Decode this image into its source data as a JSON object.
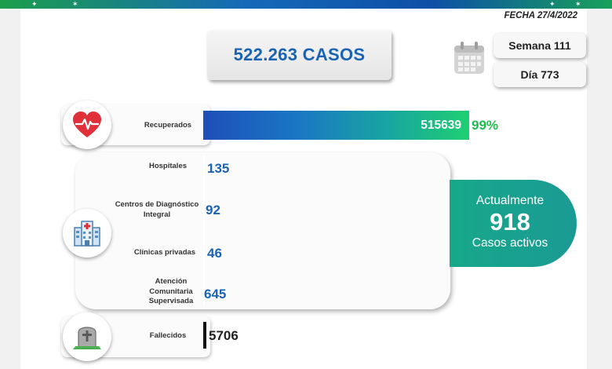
{
  "header": {
    "fecha": "FECHA 27/4/2022"
  },
  "summary": {
    "casos": "522.263 CASOS",
    "semana": "Semana 111",
    "dia": "Día 773"
  },
  "recuperados": {
    "label": "Recuperados",
    "value": "515639",
    "percent": "99%"
  },
  "facilities": [
    {
      "label": "Hospitales",
      "value": "135"
    },
    {
      "label": "Centros de Diagnóstico Integral",
      "value": "92"
    },
    {
      "label": "Clínicas privadas",
      "value": "46"
    },
    {
      "label": "Atención Comunitaria Supervisada",
      "value": "645"
    }
  ],
  "activos": {
    "line1": "Actualmente",
    "value": "918",
    "line2": "Casos activos"
  },
  "fallecidos": {
    "label": "Fallecidos",
    "value": "5706"
  },
  "icons": [
    "heart-pulse-icon",
    "hospital-icon",
    "tombstone-icon",
    "calendar-icon"
  ],
  "colors": {
    "brand_blue": "#1a63b2",
    "active_teal": "#17a88a",
    "percent_green": "#1dbd4c"
  }
}
